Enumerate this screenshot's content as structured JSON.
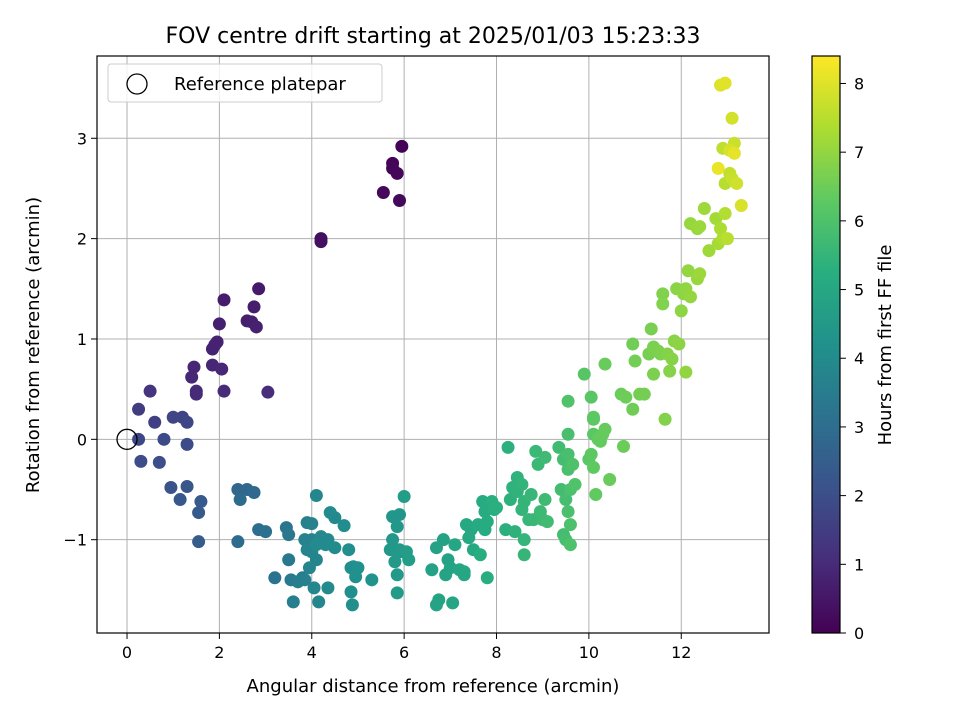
{
  "chart_data": {
    "type": "scatter",
    "title": "FOV centre drift starting at 2025/01/03 15:23:33",
    "xlabel": "Angular distance from reference (arcmin)",
    "ylabel": "Rotation from reference (arcmin)",
    "xlim": [
      -0.65,
      13.9
    ],
    "ylim": [
      -1.93,
      3.82
    ],
    "xticks": [
      0,
      2,
      4,
      6,
      8,
      10,
      12
    ],
    "yticks": [
      -1,
      0,
      1,
      2,
      3
    ],
    "grid": true,
    "legend": {
      "placement": "top-left",
      "entries": [
        "Reference platepar"
      ]
    },
    "reference": {
      "x": 0,
      "y": 0
    },
    "colorbar": {
      "label": "Hours from first FF file",
      "range": [
        0,
        8.4
      ],
      "ticks": [
        0,
        1,
        2,
        3,
        4,
        5,
        6,
        7,
        8
      ],
      "colormap": "viridis"
    },
    "points": [
      [
        5.95,
        2.92,
        0.05
      ],
      [
        5.75,
        2.75,
        0.1
      ],
      [
        5.75,
        2.7,
        0.12
      ],
      [
        5.85,
        2.65,
        0.15
      ],
      [
        5.55,
        2.46,
        0.18
      ],
      [
        5.9,
        2.38,
        0.2
      ],
      [
        4.2,
        2.0,
        0.35
      ],
      [
        4.2,
        1.97,
        0.37
      ],
      [
        2.85,
        1.5,
        0.6
      ],
      [
        2.1,
        1.39,
        0.65
      ],
      [
        2.75,
        1.32,
        0.7
      ],
      [
        2.6,
        1.18,
        0.72
      ],
      [
        2.7,
        1.17,
        0.74
      ],
      [
        2.0,
        1.15,
        0.76
      ],
      [
        2.8,
        1.12,
        0.78
      ],
      [
        1.95,
        0.97,
        0.8
      ],
      [
        1.9,
        0.94,
        0.82
      ],
      [
        1.85,
        0.9,
        0.84
      ],
      [
        1.45,
        0.72,
        0.9
      ],
      [
        1.85,
        0.74,
        0.92
      ],
      [
        2.05,
        0.7,
        0.94
      ],
      [
        1.4,
        0.62,
        0.96
      ],
      [
        1.5,
        0.48,
        1.0
      ],
      [
        1.5,
        0.45,
        1.02
      ],
      [
        2.1,
        0.48,
        1.05
      ],
      [
        3.05,
        0.47,
        1.08
      ],
      [
        0.5,
        0.48,
        1.3
      ],
      [
        0.25,
        0.3,
        1.5
      ],
      [
        0.6,
        0.17,
        1.6
      ],
      [
        1.2,
        0.22,
        1.7
      ],
      [
        1.0,
        0.22,
        1.75
      ],
      [
        1.3,
        0.17,
        1.8
      ],
      [
        0.25,
        0.0,
        1.85
      ],
      [
        0.8,
        0.0,
        1.9
      ],
      [
        1.3,
        -0.05,
        1.95
      ],
      [
        0.3,
        -0.22,
        2.0
      ],
      [
        0.7,
        -0.23,
        2.05
      ],
      [
        0.95,
        -0.48,
        2.2
      ],
      [
        1.3,
        -0.47,
        2.25
      ],
      [
        1.15,
        -0.6,
        2.3
      ],
      [
        1.6,
        -0.62,
        2.35
      ],
      [
        1.55,
        -0.73,
        2.4
      ],
      [
        1.55,
        -1.02,
        2.45
      ],
      [
        2.4,
        -0.5,
        2.8
      ],
      [
        2.6,
        -0.5,
        2.85
      ],
      [
        2.75,
        -0.53,
        2.9
      ],
      [
        2.45,
        -0.6,
        2.95
      ],
      [
        2.4,
        -1.02,
        3.0
      ],
      [
        2.85,
        -0.9,
        3.05
      ],
      [
        3.0,
        -0.92,
        3.1
      ],
      [
        3.2,
        -1.38,
        3.2
      ],
      [
        3.45,
        -0.88,
        3.3
      ],
      [
        3.5,
        -0.95,
        3.35
      ],
      [
        3.5,
        -1.2,
        3.4
      ],
      [
        3.55,
        -1.4,
        3.45
      ],
      [
        3.8,
        -1.38,
        3.5
      ],
      [
        3.7,
        -1.42,
        3.55
      ],
      [
        3.6,
        -1.62,
        3.6
      ],
      [
        3.85,
        -1.4,
        3.65
      ],
      [
        3.9,
        -0.83,
        3.7
      ],
      [
        4.0,
        -0.84,
        3.72
      ],
      [
        3.85,
        -1.0,
        3.74
      ],
      [
        4.0,
        -1.0,
        3.76
      ],
      [
        3.9,
        -1.1,
        3.78
      ],
      [
        4.0,
        -1.12,
        3.8
      ],
      [
        4.1,
        -1.2,
        3.82
      ],
      [
        3.95,
        -1.28,
        3.84
      ],
      [
        4.05,
        -1.48,
        3.86
      ],
      [
        4.15,
        -1.62,
        3.88
      ],
      [
        4.1,
        -0.56,
        3.9
      ],
      [
        4.2,
        -0.97,
        3.92
      ],
      [
        4.35,
        -1.0,
        3.94
      ],
      [
        4.5,
        -0.78,
        3.96
      ],
      [
        4.4,
        -0.73,
        3.98
      ],
      [
        4.3,
        -1.05,
        4.0
      ],
      [
        4.1,
        -1.05,
        4.02
      ],
      [
        4.35,
        -1.48,
        4.04
      ],
      [
        4.5,
        -1.08,
        4.06
      ],
      [
        4.7,
        -0.86,
        4.1
      ],
      [
        4.8,
        -1.1,
        4.12
      ],
      [
        4.85,
        -1.28,
        4.14
      ],
      [
        4.9,
        -1.27,
        4.16
      ],
      [
        4.85,
        -1.52,
        4.18
      ],
      [
        4.88,
        -1.65,
        4.2
      ],
      [
        4.95,
        -1.37,
        4.22
      ],
      [
        5.0,
        -1.28,
        4.24
      ],
      [
        5.3,
        -1.4,
        4.3
      ],
      [
        5.75,
        -0.77,
        4.4
      ],
      [
        5.9,
        -0.75,
        4.42
      ],
      [
        5.85,
        -0.87,
        4.44
      ],
      [
        5.75,
        -1.0,
        4.46
      ],
      [
        5.7,
        -1.1,
        4.48
      ],
      [
        5.85,
        -1.12,
        4.5
      ],
      [
        5.9,
        -1.1,
        4.52
      ],
      [
        5.95,
        -1.12,
        4.54
      ],
      [
        5.8,
        -1.22,
        4.56
      ],
      [
        5.85,
        -1.35,
        4.58
      ],
      [
        5.85,
        -1.53,
        4.6
      ],
      [
        6.0,
        -0.57,
        4.62
      ],
      [
        6.05,
        -1.12,
        4.64
      ],
      [
        6.1,
        -1.2,
        4.66
      ],
      [
        6.6,
        -1.3,
        4.8
      ],
      [
        6.7,
        -1.08,
        4.82
      ],
      [
        6.85,
        -1.0,
        4.84
      ],
      [
        6.95,
        -1.2,
        4.86
      ],
      [
        6.75,
        -1.6,
        4.88
      ],
      [
        6.7,
        -1.65,
        4.9
      ],
      [
        6.9,
        -1.35,
        4.92
      ],
      [
        7.0,
        -1.28,
        4.94
      ],
      [
        7.05,
        -1.63,
        4.96
      ],
      [
        7.1,
        -1.05,
        4.98
      ],
      [
        7.2,
        -1.3,
        5.0
      ],
      [
        7.3,
        -1.35,
        5.02
      ],
      [
        7.3,
        -1.32,
        5.04
      ],
      [
        7.35,
        -0.85,
        5.06
      ],
      [
        7.4,
        -0.98,
        5.08
      ],
      [
        7.45,
        -0.9,
        5.1
      ],
      [
        7.5,
        -1.1,
        5.12
      ],
      [
        7.6,
        -0.85,
        5.14
      ],
      [
        7.7,
        -0.62,
        5.16
      ],
      [
        7.75,
        -0.9,
        5.18
      ],
      [
        7.75,
        -0.72,
        5.2
      ],
      [
        7.8,
        -0.82,
        5.22
      ],
      [
        7.8,
        -1.38,
        5.24
      ],
      [
        7.65,
        -1.15,
        5.26
      ],
      [
        7.9,
        -0.62,
        5.28
      ],
      [
        7.95,
        -0.7,
        5.3
      ],
      [
        8.0,
        -0.68,
        5.32
      ],
      [
        8.2,
        -0.9,
        5.34
      ],
      [
        8.25,
        -0.08,
        5.36
      ],
      [
        8.3,
        -0.6,
        5.38
      ],
      [
        8.35,
        -0.48,
        5.4
      ],
      [
        8.4,
        -0.92,
        5.42
      ],
      [
        8.45,
        -0.38,
        5.44
      ],
      [
        8.45,
        -0.52,
        5.46
      ],
      [
        8.55,
        -0.45,
        5.48
      ],
      [
        8.55,
        -0.7,
        5.5
      ],
      [
        8.6,
        -0.62,
        5.52
      ],
      [
        8.6,
        -1.0,
        5.54
      ],
      [
        8.6,
        -1.15,
        5.56
      ],
      [
        8.7,
        -0.8,
        5.58
      ],
      [
        8.75,
        -0.55,
        5.6
      ],
      [
        8.8,
        -0.8,
        5.62
      ],
      [
        8.85,
        -0.12,
        5.64
      ],
      [
        8.9,
        -0.25,
        5.66
      ],
      [
        8.95,
        -0.72,
        5.68
      ],
      [
        9.0,
        -0.8,
        5.7
      ],
      [
        9.05,
        -0.18,
        5.72
      ],
      [
        9.05,
        -0.6,
        5.74
      ],
      [
        9.1,
        -0.82,
        5.76
      ],
      [
        9.35,
        -0.08,
        5.78
      ],
      [
        9.4,
        -0.5,
        5.8
      ],
      [
        9.45,
        -0.2,
        5.82
      ],
      [
        9.45,
        -0.95,
        5.84
      ],
      [
        9.5,
        -0.6,
        5.86
      ],
      [
        9.5,
        -1.0,
        5.88
      ],
      [
        9.55,
        0.05,
        5.9
      ],
      [
        9.55,
        -0.15,
        5.92
      ],
      [
        9.55,
        -0.3,
        5.94
      ],
      [
        9.55,
        -0.72,
        5.96
      ],
      [
        9.6,
        -0.5,
        5.98
      ],
      [
        9.6,
        -0.85,
        6.0
      ],
      [
        9.6,
        -1.05,
        6.02
      ],
      [
        9.65,
        -0.25,
        6.04
      ],
      [
        9.7,
        -0.45,
        6.06
      ],
      [
        9.55,
        0.38,
        6.08
      ],
      [
        9.9,
        0.65,
        6.2
      ],
      [
        10.0,
        -0.2,
        6.22
      ],
      [
        10.05,
        0.42,
        6.24
      ],
      [
        10.1,
        0.05,
        6.26
      ],
      [
        10.1,
        0.2,
        6.28
      ],
      [
        10.1,
        0.22,
        6.3
      ],
      [
        10.05,
        -0.15,
        6.32
      ],
      [
        10.1,
        -0.28,
        6.34
      ],
      [
        10.15,
        -0.55,
        6.36
      ],
      [
        10.2,
        0.0,
        6.38
      ],
      [
        10.25,
        -0.02,
        6.4
      ],
      [
        10.3,
        0.05,
        6.42
      ],
      [
        10.35,
        0.1,
        6.44
      ],
      [
        10.35,
        0.75,
        6.46
      ],
      [
        10.45,
        -0.4,
        6.48
      ],
      [
        10.7,
        0.45,
        6.5
      ],
      [
        10.75,
        -0.07,
        6.52
      ],
      [
        10.8,
        0.42,
        6.54
      ],
      [
        10.95,
        0.3,
        6.56
      ],
      [
        10.95,
        0.95,
        6.58
      ],
      [
        11.0,
        0.78,
        6.6
      ],
      [
        11.1,
        0.45,
        6.62
      ],
      [
        11.2,
        0.45,
        6.64
      ],
      [
        11.3,
        0.85,
        6.66
      ],
      [
        11.35,
        1.1,
        6.68
      ],
      [
        11.4,
        0.92,
        6.7
      ],
      [
        11.4,
        0.65,
        6.72
      ],
      [
        11.5,
        0.88,
        6.74
      ],
      [
        11.55,
        0.85,
        6.76
      ],
      [
        11.6,
        1.45,
        6.78
      ],
      [
        11.6,
        1.35,
        6.8
      ],
      [
        11.65,
        0.2,
        6.82
      ],
      [
        11.7,
        0.85,
        6.84
      ],
      [
        11.75,
        0.68,
        6.86
      ],
      [
        11.8,
        0.8,
        6.88
      ],
      [
        11.85,
        0.98,
        6.9
      ],
      [
        11.9,
        1.5,
        6.92
      ],
      [
        11.95,
        0.95,
        6.94
      ],
      [
        12.0,
        1.28,
        6.96
      ],
      [
        12.05,
        1.45,
        6.98
      ],
      [
        12.1,
        1.5,
        7.0
      ],
      [
        12.1,
        0.67,
        7.02
      ],
      [
        12.15,
        1.68,
        7.04
      ],
      [
        12.2,
        1.42,
        7.06
      ],
      [
        12.2,
        2.15,
        7.08
      ],
      [
        12.35,
        1.6,
        7.1
      ],
      [
        12.35,
        2.1,
        7.12
      ],
      [
        12.4,
        2.12,
        7.14
      ],
      [
        12.4,
        1.65,
        7.16
      ],
      [
        12.5,
        2.3,
        7.18
      ],
      [
        12.6,
        1.88,
        7.2
      ],
      [
        12.75,
        2.2,
        7.25
      ],
      [
        12.8,
        1.95,
        7.3
      ],
      [
        12.85,
        2.1,
        7.35
      ],
      [
        12.9,
        2.0,
        7.4
      ],
      [
        12.95,
        2.25,
        7.45
      ],
      [
        12.95,
        2.55,
        7.5
      ],
      [
        13.0,
        2.0,
        7.55
      ],
      [
        12.9,
        2.9,
        7.6
      ],
      [
        13.05,
        2.65,
        7.65
      ],
      [
        13.1,
        2.6,
        7.7
      ],
      [
        13.15,
        2.95,
        7.75
      ],
      [
        13.2,
        2.55,
        7.8
      ],
      [
        13.1,
        3.2,
        7.85
      ],
      [
        13.05,
        2.88,
        7.9
      ],
      [
        13.3,
        2.33,
        7.95
      ],
      [
        12.85,
        3.53,
        8.0
      ],
      [
        12.95,
        3.55,
        8.05
      ],
      [
        13.15,
        2.85,
        8.1
      ],
      [
        12.8,
        2.7,
        8.15
      ]
    ]
  }
}
